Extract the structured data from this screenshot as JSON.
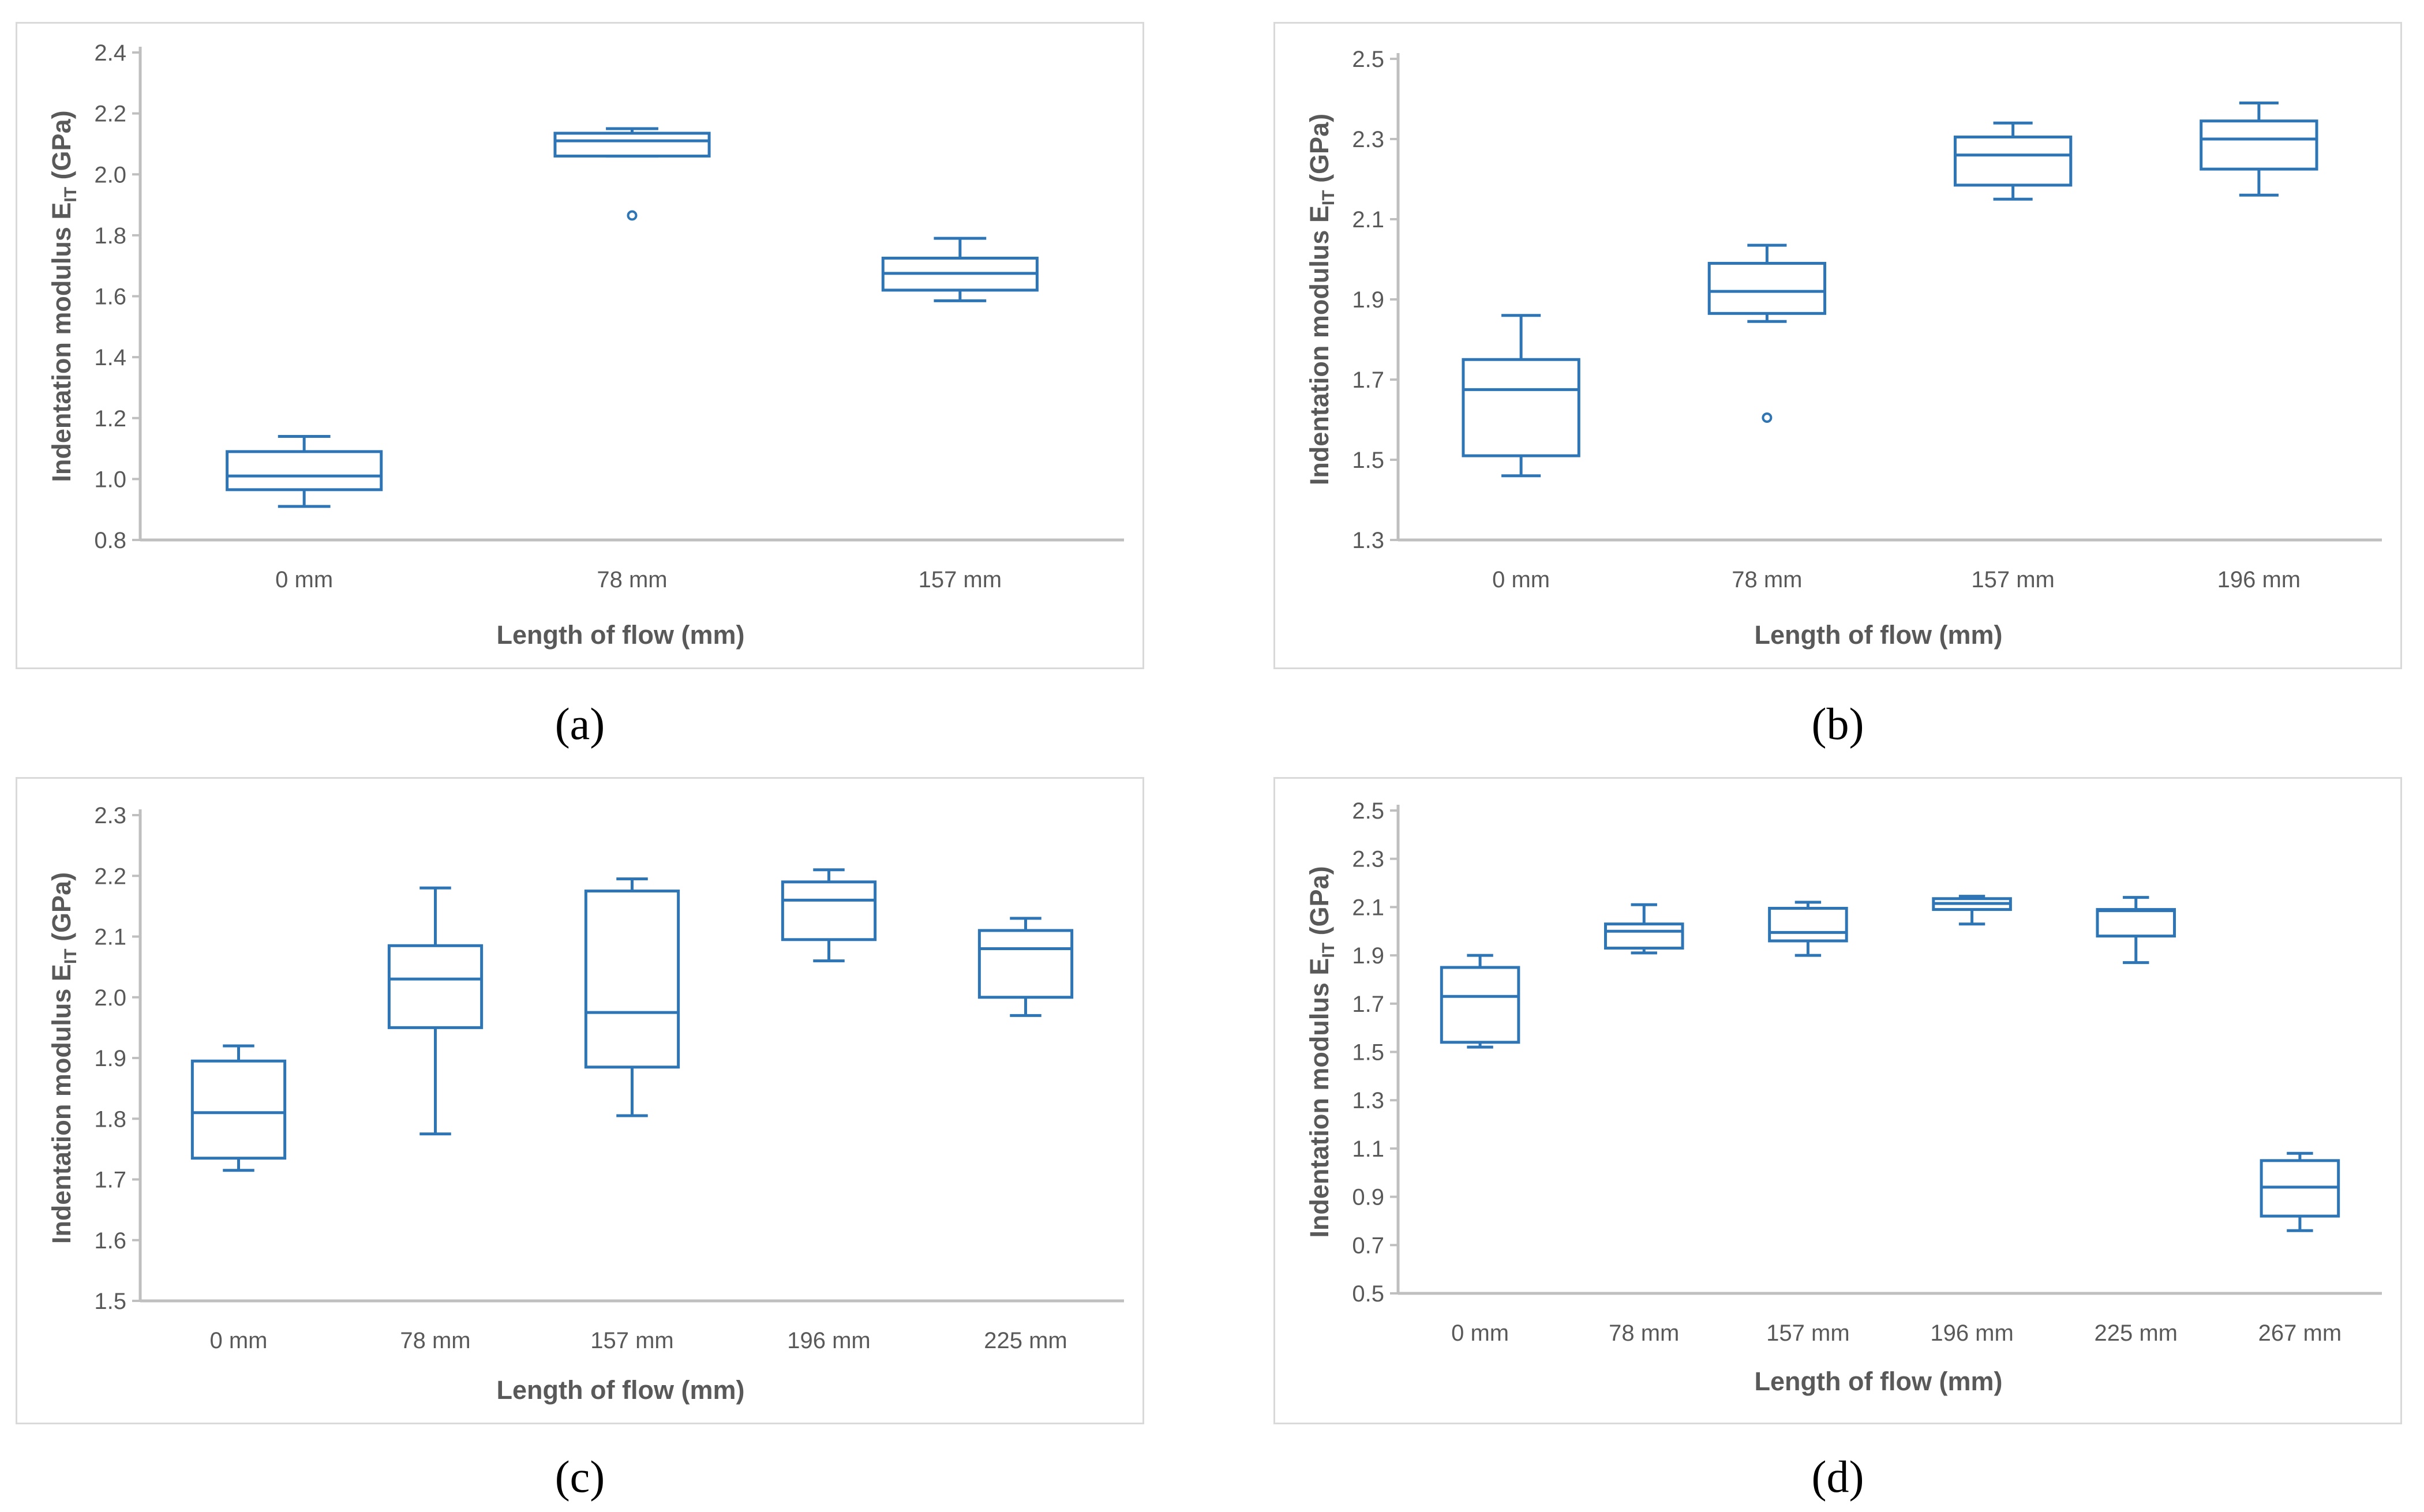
{
  "chart_data": [
    {
      "type": "box",
      "panel": "a",
      "caption": "(a)",
      "xlabel": "Length of flow (mm)",
      "ylabel_main": "Indentation modulus E",
      "ylabel_sub": "IT",
      "ylabel_unit": " (GPa)",
      "ylim": [
        0.8,
        2.4
      ],
      "yticks": [
        "0.8",
        "1.0",
        "1.2",
        "1.4",
        "1.6",
        "1.8",
        "2.0",
        "2.2",
        "2.4"
      ],
      "categories": [
        "0 mm",
        "78 mm",
        "157 mm"
      ],
      "boxes": [
        {
          "min": 0.91,
          "q1": 0.965,
          "median": 1.01,
          "q3": 1.09,
          "max": 1.14,
          "outliers": []
        },
        {
          "min": 2.06,
          "q1": 2.06,
          "median": 2.11,
          "q3": 2.135,
          "max": 2.15,
          "outliers": [
            1.865
          ]
        },
        {
          "min": 1.585,
          "q1": 1.62,
          "median": 1.675,
          "q3": 1.725,
          "max": 1.79,
          "outliers": []
        }
      ]
    },
    {
      "type": "box",
      "panel": "b",
      "caption": "(b)",
      "xlabel": "Length of flow (mm)",
      "ylabel_main": "Indentation modulus E",
      "ylabel_sub": "IT",
      "ylabel_unit": " (GPa)",
      "ylim": [
        1.3,
        2.5
      ],
      "yticks": [
        "1.3",
        "1.5",
        "1.7",
        "1.9",
        "2.1",
        "2.3",
        "2.5"
      ],
      "categories": [
        "0 mm",
        "78 mm",
        "157 mm",
        "196 mm"
      ],
      "boxes": [
        {
          "min": 1.46,
          "q1": 1.51,
          "median": 1.675,
          "q3": 1.75,
          "max": 1.86,
          "outliers": []
        },
        {
          "min": 1.845,
          "q1": 1.865,
          "median": 1.92,
          "q3": 1.99,
          "max": 2.035,
          "outliers": [
            1.605
          ]
        },
        {
          "min": 2.15,
          "q1": 2.185,
          "median": 2.26,
          "q3": 2.305,
          "max": 2.34,
          "outliers": []
        },
        {
          "min": 2.16,
          "q1": 2.225,
          "median": 2.3,
          "q3": 2.345,
          "max": 2.39,
          "outliers": []
        }
      ]
    },
    {
      "type": "box",
      "panel": "c",
      "caption": "(c)",
      "xlabel": "Length of flow (mm)",
      "ylabel_main": "Indentation modulus E",
      "ylabel_sub": "IT",
      "ylabel_unit": " (GPa)",
      "ylim": [
        1.5,
        2.3
      ],
      "yticks": [
        "1.5",
        "1.6",
        "1.7",
        "1.8",
        "1.9",
        "2.0",
        "2.1",
        "2.2",
        "2.3"
      ],
      "categories": [
        "0 mm",
        "78 mm",
        "157 mm",
        "196 mm",
        "225 mm"
      ],
      "boxes": [
        {
          "min": 1.715,
          "q1": 1.735,
          "median": 1.81,
          "q3": 1.895,
          "max": 1.92,
          "outliers": []
        },
        {
          "min": 1.775,
          "q1": 1.95,
          "median": 2.03,
          "q3": 2.085,
          "max": 2.18,
          "outliers": []
        },
        {
          "min": 1.805,
          "q1": 1.885,
          "median": 1.975,
          "q3": 2.175,
          "max": 2.195,
          "outliers": []
        },
        {
          "min": 2.06,
          "q1": 2.095,
          "median": 2.16,
          "q3": 2.19,
          "max": 2.21,
          "outliers": []
        },
        {
          "min": 1.97,
          "q1": 2.0,
          "median": 2.08,
          "q3": 2.11,
          "max": 2.13,
          "outliers": []
        }
      ]
    },
    {
      "type": "box",
      "panel": "d",
      "caption": "(d)",
      "xlabel": "Length of flow (mm)",
      "ylabel_main": "Indentation modulus E",
      "ylabel_sub": "IT",
      "ylabel_unit": " (GPa)",
      "ylim": [
        0.5,
        2.5
      ],
      "yticks": [
        "0.5",
        "0.7",
        "0.9",
        "1.1",
        "1.3",
        "1.5",
        "1.7",
        "1.9",
        "2.1",
        "2.3",
        "2.5"
      ],
      "categories": [
        "0 mm",
        "78 mm",
        "157 mm",
        "196 mm",
        "225 mm",
        "267 mm"
      ],
      "boxes": [
        {
          "min": 1.52,
          "q1": 1.54,
          "median": 1.73,
          "q3": 1.85,
          "max": 1.9,
          "outliers": []
        },
        {
          "min": 1.91,
          "q1": 1.93,
          "median": 2.0,
          "q3": 2.03,
          "max": 2.11,
          "outliers": []
        },
        {
          "min": 1.9,
          "q1": 1.96,
          "median": 1.995,
          "q3": 2.095,
          "max": 2.12,
          "outliers": []
        },
        {
          "min": 2.03,
          "q1": 2.09,
          "median": 2.115,
          "q3": 2.135,
          "max": 2.145,
          "outliers": []
        },
        {
          "min": 1.87,
          "q1": 1.98,
          "median": 2.085,
          "q3": 2.09,
          "max": 2.14,
          "outliers": []
        },
        {
          "min": 0.76,
          "q1": 0.82,
          "median": 0.94,
          "q3": 1.05,
          "max": 1.08,
          "outliers": []
        }
      ]
    }
  ],
  "colors": {
    "series": "#2e75b6",
    "axis": "#bfbfbf",
    "text": "#595959",
    "border": "#d9d9d9"
  }
}
